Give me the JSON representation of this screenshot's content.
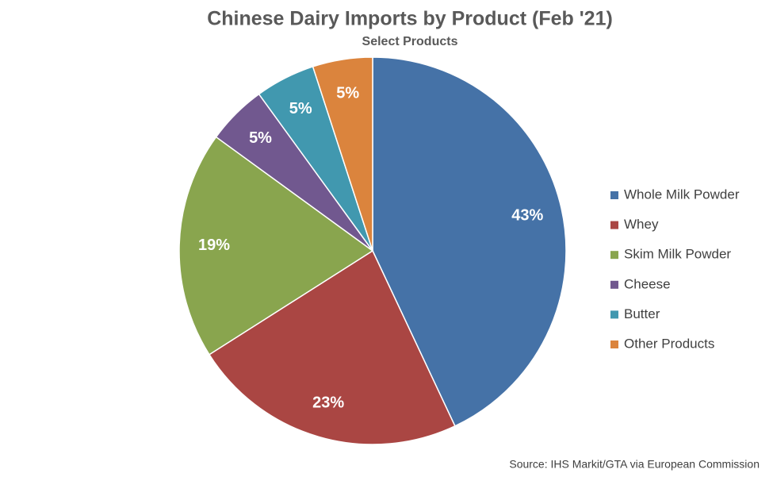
{
  "chart_data": {
    "type": "pie",
    "title": "Chinese Dairy Imports by Product (Feb '21)",
    "subtitle": "Select Products",
    "categories": [
      "Whole Milk Powder",
      "Whey",
      "Skim Milk Powder",
      "Cheese",
      "Butter",
      "Other Products"
    ],
    "values": [
      43,
      23,
      19,
      5,
      5,
      5
    ],
    "value_labels": [
      "43%",
      "23%",
      "19%",
      "5%",
      "5%",
      "5%"
    ],
    "colors": [
      "#4572a7",
      "#aa4643",
      "#89a54e",
      "#71588f",
      "#4198af",
      "#db843d"
    ],
    "legend": "right",
    "source": "Source: IHS Markit/GTA via European Commission"
  }
}
